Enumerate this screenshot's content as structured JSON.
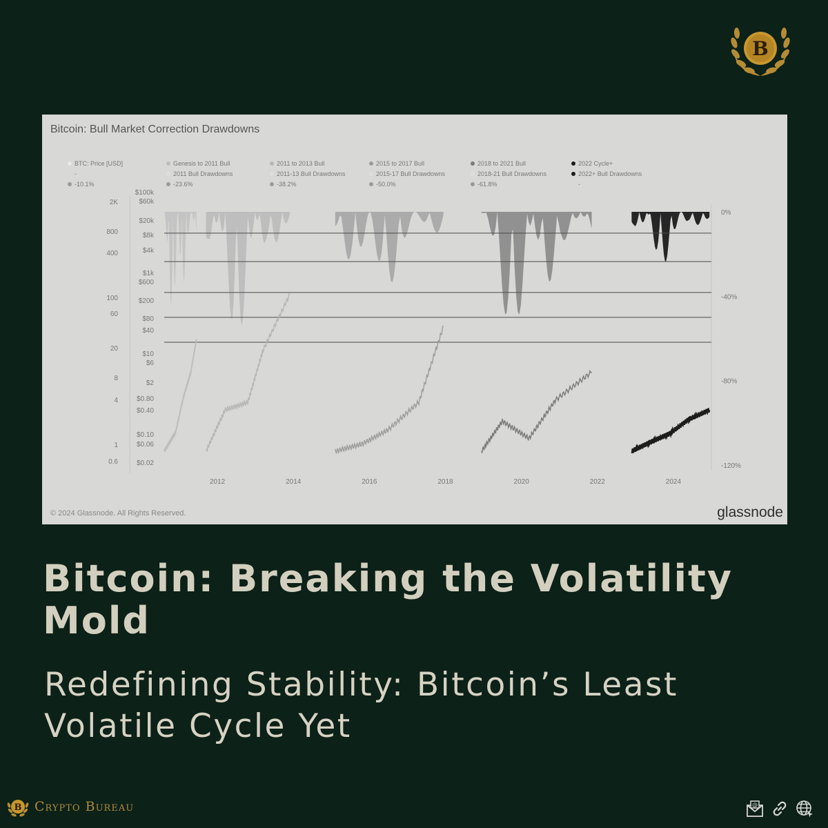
{
  "brand": {
    "name": "Crypto Bureau",
    "logo_letter": "B"
  },
  "headline": "Bitcoin: Breaking the Volatility Mold",
  "subheadline": "Redefining Stability: Bitcoin’s Least Volatile Cycle Yet",
  "icons": [
    "email-icon",
    "link-icon",
    "globe-icon"
  ],
  "chart_data": {
    "type": "line",
    "title": "Bitcoin: Bull Market Correction Drawdowns",
    "copyright": "© 2024 Glassnode. All Rights Reserved.",
    "source": "glassnode",
    "legend": [
      {
        "label": "BTC: Price [USD]",
        "color": "#e9e9e9"
      },
      {
        "label": "-",
        "color": "none"
      },
      {
        "label": "-10.1%",
        "color": "#9a9a9a"
      },
      {
        "label": "Genesis to 2011 Bull",
        "color": "#bdbdbd"
      },
      {
        "label": "2011 Bull Drawdowns",
        "color": "#dedede"
      },
      {
        "label": "-23.6%",
        "color": "#9a9a9a"
      },
      {
        "label": "2011 to 2013 Bull",
        "color": "#b6b6b6"
      },
      {
        "label": "2011-13 Bull Drawdowns",
        "color": "#dedede"
      },
      {
        "label": "-38.2%",
        "color": "#9a9a9a"
      },
      {
        "label": "2015 to 2017 Bull",
        "color": "#9c9c9c"
      },
      {
        "label": "2015-17 Bull Drawdowns",
        "color": "#dedede"
      },
      {
        "label": "-50.0%",
        "color": "#9a9a9a"
      },
      {
        "label": "2018 to 2021 Bull",
        "color": "#7a7a7a"
      },
      {
        "label": "2018-21 Bull Drawdowns",
        "color": "#dedede"
      },
      {
        "label": "-61.8%",
        "color": "#9a9a9a"
      },
      {
        "label": "2022 Cycle+",
        "color": "#1c1c1c"
      },
      {
        "label": "2022+ Bull Drawdowns",
        "color": "#1c1c1c"
      },
      {
        "label": "-",
        "color": "none"
      }
    ],
    "x_ticks": [
      "2012",
      "2014",
      "2016",
      "2018",
      "2020",
      "2022",
      "2024"
    ],
    "x_range": [
      2010.6,
      2025.0
    ],
    "y_left_outer_ticks": [
      "2K",
      "800",
      "400",
      "100",
      "60",
      "20",
      "8",
      "4",
      "1",
      "0.6"
    ],
    "y_left_inner_ticks": [
      "$100k",
      "$60k",
      "$20k",
      "$8k",
      "$4k",
      "$1k",
      "$600",
      "$200",
      "$80",
      "$40",
      "$10",
      "$6",
      "$2",
      "$0.80",
      "$0.40",
      "$0.10",
      "$0.06",
      "$0.02"
    ],
    "y_right_ticks": [
      "0%",
      "-40%",
      "-80%",
      "-120%"
    ],
    "y_right_range": [
      0,
      -120
    ],
    "reference_levels": [
      -10.1,
      -23.6,
      -38.2,
      -50.0,
      -61.8
    ],
    "series": [
      {
        "name": "Genesis to 2011 Bull",
        "color": "#bdbdbd",
        "x": [
          2010.6,
          2010.9,
          2011.1,
          2011.3,
          2011.45
        ],
        "price": [
          1.0,
          2.0,
          7.0,
          18.0,
          60.0
        ],
        "drawdown_min": -55.0
      },
      {
        "name": "2011 to 2013 Bull",
        "color": "#b6b6b6",
        "x": [
          2011.7,
          2012.2,
          2012.8,
          2013.2,
          2013.9
        ],
        "price": [
          1.0,
          4.5,
          6.0,
          40.0,
          300.0
        ],
        "drawdown_min": -61.0
      },
      {
        "name": "2015 to 2017 Bull",
        "color": "#9c9c9c",
        "x": [
          2015.1,
          2015.8,
          2016.5,
          2017.3,
          2017.95
        ],
        "price": [
          1.0,
          1.3,
          2.2,
          6.0,
          95.0
        ],
        "drawdown_min": -40.0
      },
      {
        "name": "2018 to 2021 Bull",
        "color": "#7a7a7a",
        "x": [
          2018.95,
          2019.5,
          2020.2,
          2020.9,
          2021.85
        ],
        "price": [
          1.0,
          3.0,
          1.6,
          6.5,
          18.0
        ],
        "drawdown_min": -62.0
      },
      {
        "name": "2022 Cycle+",
        "color": "#1c1c1c",
        "x": [
          2022.9,
          2023.4,
          2023.9,
          2024.4,
          2024.95
        ],
        "price": [
          1.0,
          1.4,
          1.9,
          3.2,
          4.5
        ],
        "drawdown_min": -25.0
      }
    ]
  }
}
